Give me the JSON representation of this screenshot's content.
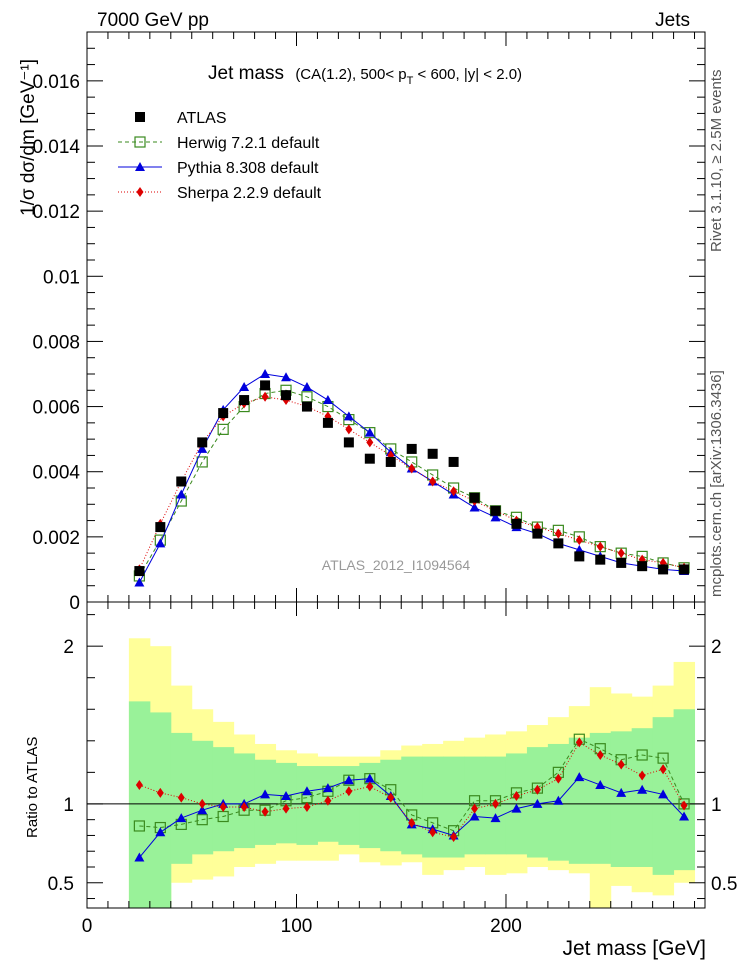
{
  "header": {
    "left": "7000 GeV pp",
    "right": "Jets"
  },
  "side_labels": {
    "rivet": "Rivet 3.1.10, ≥ 2.5M events",
    "mcplots": "mcplots.cern.ch [arXiv:1306.3436]"
  },
  "chart_data": [
    {
      "type": "scatter",
      "title": "Jet mass",
      "title_detail": "(CA(1.2), 500< p_T < 600, |y| < 2.0)",
      "ylabel": "1/σ dσ/dm [GeV⁻¹]",
      "xlim": [
        0,
        295
      ],
      "ylim": [
        0,
        0.0175
      ],
      "y_ticks": [
        "0",
        "0.002",
        "0.004",
        "0.006",
        "0.008",
        "0.01",
        "0.012",
        "0.014",
        "0.016"
      ],
      "y_tick_values": [
        0,
        0.002,
        0.004,
        0.006,
        0.008,
        0.01,
        0.012,
        0.014,
        0.016
      ],
      "watermark": "ATLAS_2012_I1094564",
      "legend_position": "top-left",
      "x": [
        25,
        35,
        45,
        55,
        65,
        75,
        85,
        95,
        105,
        115,
        125,
        135,
        145,
        155,
        165,
        175,
        185,
        195,
        205,
        215,
        225,
        235,
        245,
        255,
        265,
        275,
        285
      ],
      "series": [
        {
          "name": "ATLAS",
          "marker": "square-filled",
          "color": "#000000",
          "values": [
            0.00095,
            0.0023,
            0.0037,
            0.0049,
            0.0058,
            0.0062,
            0.00665,
            0.00635,
            0.006,
            0.0055,
            0.0049,
            0.0044,
            0.0043,
            0.0047,
            0.00455,
            0.0043,
            0.0032,
            0.0028,
            0.0024,
            0.0021,
            0.0018,
            0.0014,
            0.0013,
            0.0012,
            0.0011,
            0.001,
            0.001
          ]
        },
        {
          "name": "Herwig 7.2.1 default",
          "marker": "square-open",
          "color": "#3a8a1e",
          "dash": "4,3",
          "values": [
            0.0008,
            0.0019,
            0.0031,
            0.0043,
            0.0053,
            0.006,
            0.0064,
            0.0065,
            0.0063,
            0.006,
            0.0056,
            0.0052,
            0.0047,
            0.0043,
            0.0039,
            0.0035,
            0.0032,
            0.0028,
            0.0026,
            0.0023,
            0.0022,
            0.002,
            0.0017,
            0.0015,
            0.0014,
            0.0012,
            0.00105
          ]
        },
        {
          "name": "Pythia 8.308 default",
          "marker": "triangle-filled",
          "color": "#0000dd",
          "dash": "",
          "values": [
            0.0006,
            0.0018,
            0.0033,
            0.0047,
            0.0059,
            0.0066,
            0.007,
            0.0069,
            0.0066,
            0.0062,
            0.0057,
            0.0052,
            0.0046,
            0.0041,
            0.0037,
            0.0033,
            0.0029,
            0.0026,
            0.0023,
            0.0021,
            0.0018,
            0.0016,
            0.0014,
            0.0012,
            0.0011,
            0.001,
            0.00095
          ]
        },
        {
          "name": "Sherpa 2.2.9 default",
          "marker": "diamond-filled",
          "color": "#dd0000",
          "dash": "1,2",
          "values": [
            0.001,
            0.0024,
            0.0037,
            0.0049,
            0.0057,
            0.0061,
            0.0063,
            0.0062,
            0.006,
            0.0057,
            0.0053,
            0.0049,
            0.0045,
            0.0041,
            0.0037,
            0.0034,
            0.0031,
            0.0028,
            0.0025,
            0.0023,
            0.0021,
            0.0019,
            0.0017,
            0.0015,
            0.0013,
            0.0012,
            0.00105
          ]
        }
      ]
    },
    {
      "type": "scatter",
      "xlabel": "Jet mass [GeV]",
      "ylabel": "Ratio to ATLAS",
      "xlim": [
        0,
        295
      ],
      "ylim": [
        0.34,
        2.28
      ],
      "y_ticks": [
        "0.5",
        "1",
        "2"
      ],
      "y_tick_values": [
        0.5,
        1,
        2
      ],
      "x_ticks": [
        "0",
        "100",
        "200"
      ],
      "x_tick_values": [
        0,
        100,
        200
      ],
      "band_edges": [
        20,
        30,
        40,
        50,
        60,
        70,
        80,
        90,
        100,
        110,
        120,
        130,
        140,
        150,
        160,
        170,
        180,
        190,
        200,
        210,
        220,
        230,
        240,
        250,
        260,
        270,
        280,
        290
      ],
      "band_inner": {
        "color": "#99f299",
        "low": [
          0.34,
          0.34,
          0.62,
          0.68,
          0.7,
          0.72,
          0.74,
          0.75,
          0.74,
          0.76,
          0.74,
          0.72,
          0.7,
          0.68,
          0.66,
          0.66,
          0.68,
          0.68,
          0.68,
          0.66,
          0.64,
          0.62,
          0.62,
          0.6,
          0.6,
          0.55,
          0.58
        ],
        "high": [
          1.65,
          1.58,
          1.45,
          1.4,
          1.36,
          1.32,
          1.28,
          1.26,
          1.24,
          1.24,
          1.24,
          1.26,
          1.28,
          1.3,
          1.3,
          1.3,
          1.3,
          1.3,
          1.32,
          1.36,
          1.38,
          1.42,
          1.45,
          1.46,
          1.48,
          1.55,
          1.6
        ]
      },
      "band_outer": {
        "color": "#ffff99",
        "low": [
          0.34,
          0.34,
          0.5,
          0.52,
          0.54,
          0.6,
          0.62,
          0.64,
          0.64,
          0.64,
          0.68,
          0.63,
          0.61,
          0.63,
          0.55,
          0.58,
          0.6,
          0.55,
          0.56,
          0.6,
          0.58,
          0.56,
          0.34,
          0.48,
          0.44,
          0.42,
          0.5,
          0.53
        ],
        "high": [
          2.05,
          2.0,
          1.75,
          1.6,
          1.52,
          1.44,
          1.38,
          1.34,
          1.32,
          1.3,
          1.3,
          1.3,
          1.34,
          1.37,
          1.38,
          1.4,
          1.42,
          1.44,
          1.46,
          1.5,
          1.55,
          1.62,
          1.74,
          1.7,
          1.68,
          1.75,
          1.9,
          1.84
        ]
      },
      "x": [
        25,
        35,
        45,
        55,
        65,
        75,
        85,
        95,
        105,
        115,
        125,
        135,
        145,
        155,
        165,
        175,
        185,
        195,
        205,
        215,
        225,
        235,
        245,
        255,
        265,
        275,
        285
      ],
      "series": [
        {
          "name": "Herwig 7.2.1 default",
          "marker": "square-open",
          "color": "#3a8a1e",
          "dash": "4,3",
          "values": [
            0.86,
            0.85,
            0.87,
            0.9,
            0.92,
            0.96,
            0.96,
            1.02,
            1.04,
            1.08,
            1.15,
            1.16,
            1.09,
            0.93,
            0.88,
            0.83,
            1.02,
            1.02,
            1.07,
            1.1,
            1.2,
            1.41,
            1.35,
            1.28,
            1.31,
            1.29,
            1.0
          ]
        },
        {
          "name": "Pythia 8.308 default",
          "marker": "triangle-filled",
          "color": "#0000dd",
          "dash": "",
          "values": [
            0.66,
            0.82,
            0.91,
            0.96,
            1.0,
            1.0,
            1.06,
            1.05,
            1.08,
            1.1,
            1.15,
            1.16,
            1.05,
            0.87,
            0.84,
            0.8,
            0.92,
            0.91,
            0.97,
            1.0,
            1.02,
            1.17,
            1.12,
            1.07,
            1.09,
            1.06,
            0.92
          ]
        },
        {
          "name": "Sherpa 2.2.9 default",
          "marker": "diamond-filled",
          "color": "#dd0000",
          "dash": "1,2",
          "values": [
            1.12,
            1.07,
            1.04,
            1.0,
            0.98,
            0.98,
            0.95,
            0.97,
            0.98,
            1.02,
            1.08,
            1.11,
            1.04,
            0.88,
            0.82,
            0.79,
            0.97,
            1.0,
            1.05,
            1.09,
            1.16,
            1.39,
            1.31,
            1.25,
            1.18,
            1.22,
            0.99
          ]
        }
      ]
    }
  ]
}
